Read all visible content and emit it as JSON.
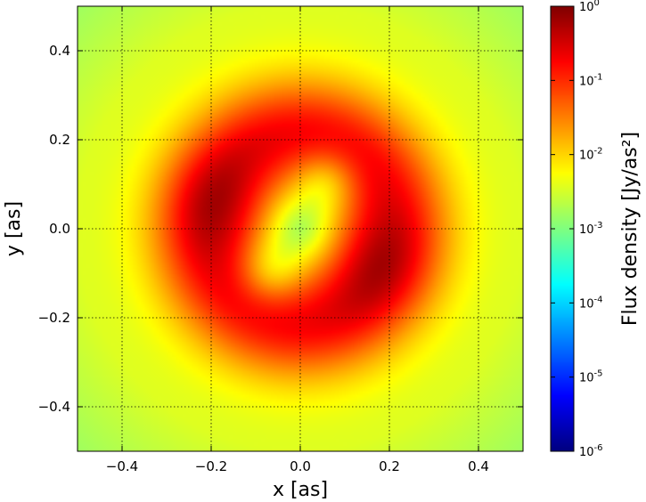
{
  "chart_data": {
    "type": "heatmap",
    "title": "",
    "xlabel": "x [as]",
    "ylabel": "y [as]",
    "xlim": [
      -0.5,
      0.5
    ],
    "ylim": [
      -0.5,
      0.5
    ],
    "xticks": [
      -0.4,
      -0.2,
      0.0,
      0.2,
      0.4
    ],
    "yticks": [
      -0.4,
      -0.2,
      0.0,
      0.2,
      0.4
    ],
    "xtick_labels": [
      "−0.4",
      "−0.2",
      "0.0",
      "0.2",
      "0.4"
    ],
    "ytick_labels": [
      "0.4",
      "0.2",
      "0.0",
      "−0.2",
      "−0.4"
    ],
    "grid": true,
    "colormap": "jet",
    "colorbar": {
      "label": "Flux density [Jy/as²]",
      "scale": "log",
      "range": [
        1e-06,
        1.0
      ],
      "ticks": [
        {
          "base": "10",
          "exp": "0",
          "value": 1.0
        },
        {
          "base": "10",
          "exp": "-1",
          "value": 0.1
        },
        {
          "base": "10",
          "exp": "-2",
          "value": 0.01
        },
        {
          "base": "10",
          "exp": "-3",
          "value": 0.001
        },
        {
          "base": "10",
          "exp": "-4",
          "value": 0.0001
        },
        {
          "base": "10",
          "exp": "-5",
          "value": 1e-05
        },
        {
          "base": "10",
          "exp": "-6",
          "value": 1e-06
        }
      ]
    },
    "features": {
      "ring_radius": 0.21,
      "peaks": [
        {
          "x": -0.16,
          "y": 0.05,
          "log10_flux": -0.1
        },
        {
          "x": 0.15,
          "y": -0.07,
          "log10_flux": -0.1
        }
      ],
      "inner_crescents": [
        {
          "x": 0.06,
          "y": 0.11,
          "log10_flux": -1.3
        },
        {
          "x": -0.07,
          "y": -0.1,
          "log10_flux": -1.3
        }
      ],
      "edge_log10_flux": -2.2,
      "corner_log10_flux": -2.7
    }
  }
}
